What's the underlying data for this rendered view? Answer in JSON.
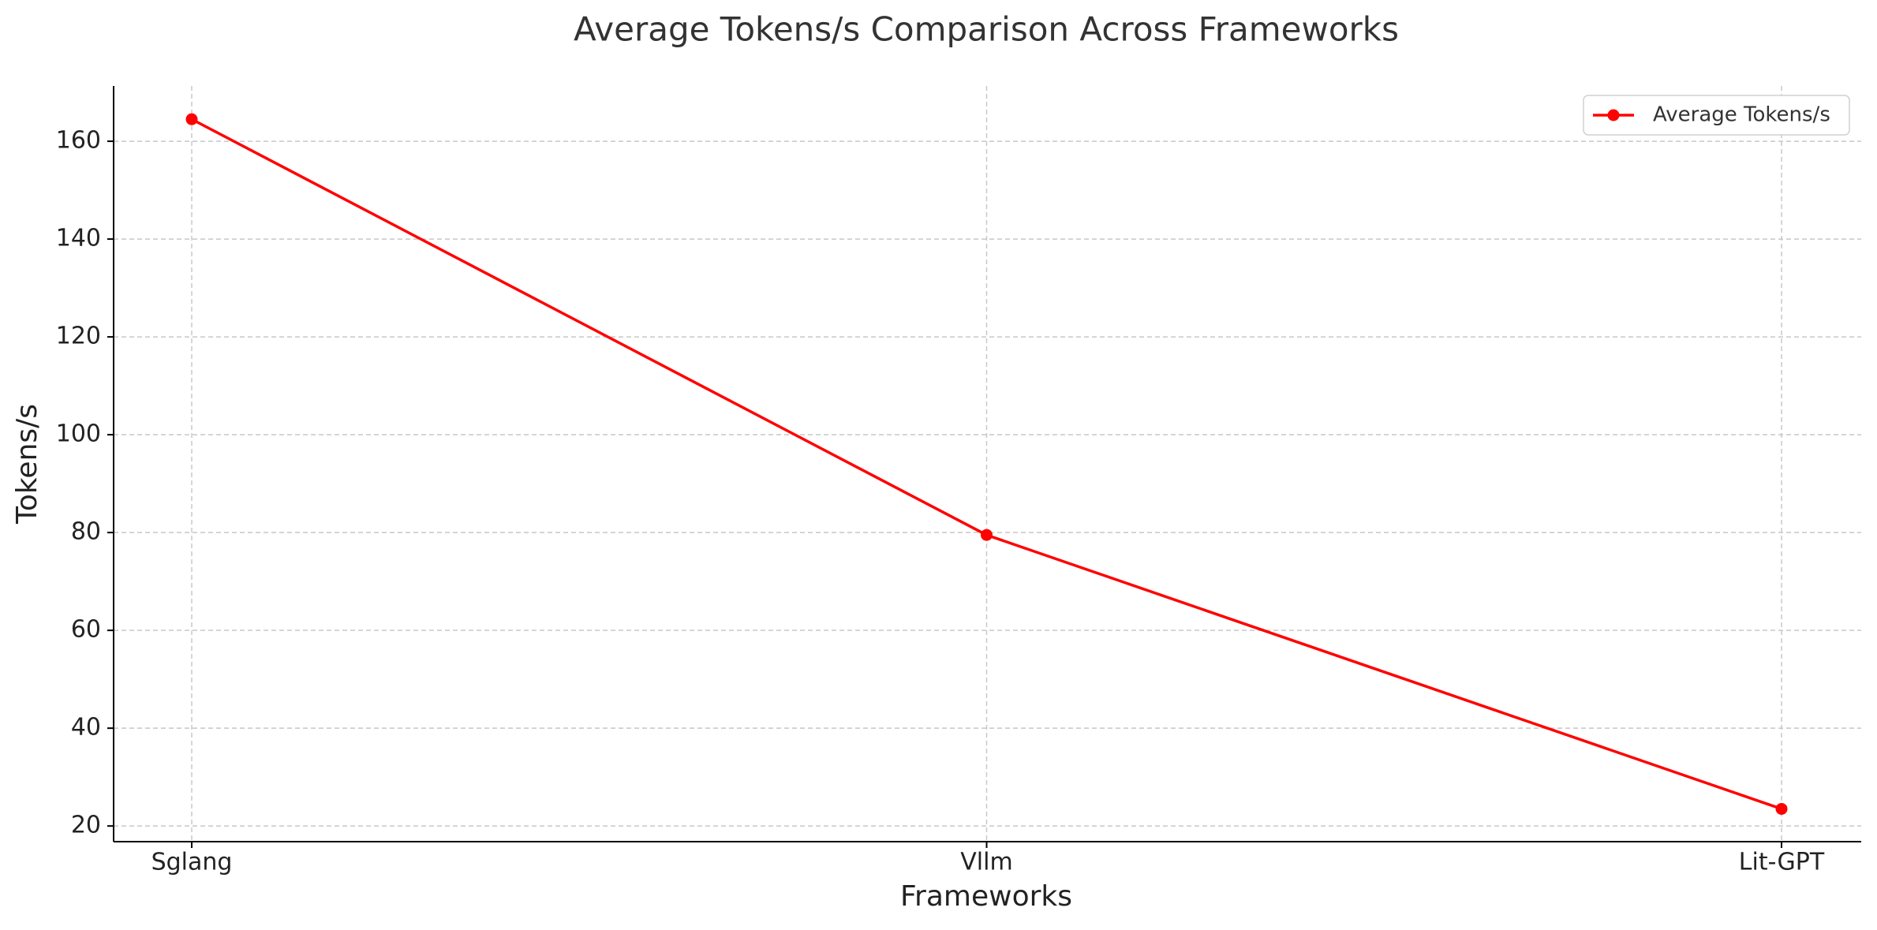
{
  "chart_data": {
    "type": "line",
    "title": "Average Tokens/s Comparison Across Frameworks",
    "x_label": "Frameworks",
    "y_label": "Tokens/s",
    "categories": [
      "Sglang",
      "Vllm",
      "Lit-GPT"
    ],
    "series": [
      {
        "name": "Average Tokens/s",
        "color": "#ff0000",
        "values": [
          164.5,
          79.5,
          23.5
        ]
      }
    ],
    "ylim": [
      16.8,
      171.3
    ],
    "yticks": [
      20,
      40,
      60,
      80,
      100,
      120,
      140,
      160
    ],
    "grid": true,
    "legend": "upper right"
  }
}
